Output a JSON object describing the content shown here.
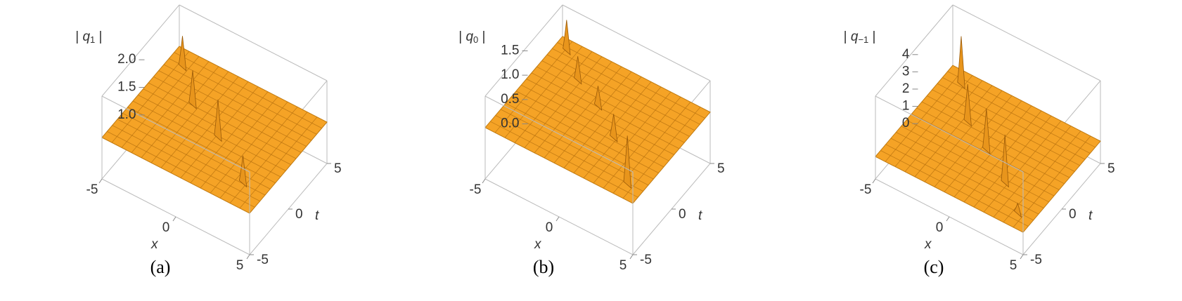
{
  "chart_data": [
    {
      "type": "surface",
      "caption": "(a)",
      "xlabel": "x",
      "ylabel": "t",
      "zlabel": {
        "open": "| ",
        "symbol": "q",
        "index": "1",
        "close": " |"
      },
      "xlim": [
        -5,
        5
      ],
      "xticks": [
        -5,
        0,
        5
      ],
      "ylim": [
        -5,
        5
      ],
      "yticks": [
        -5,
        0,
        5
      ],
      "zlim": [
        0.75,
        2.25
      ],
      "zticks": [
        {
          "value": 1,
          "label": "1.0"
        },
        1.5,
        {
          "value": 2,
          "label": "2.0"
        }
      ],
      "color": "#f5a326"
    },
    {
      "type": "surface",
      "caption": "(b)",
      "xlabel": "x",
      "ylabel": "t",
      "zlabel": {
        "open": "| ",
        "symbol": "q",
        "index": "0",
        "close": " |"
      },
      "xlim": [
        -5,
        5
      ],
      "xticks": [
        -5,
        0,
        5
      ],
      "ylim": [
        -5,
        5
      ],
      "yticks": [
        -5,
        0,
        5
      ],
      "zlim": [
        -0.1,
        1.6
      ],
      "zticks": [
        {
          "value": 0,
          "label": "0.0"
        },
        0.5,
        {
          "value": 1,
          "label": "1.0"
        },
        1.5
      ],
      "color": "#f5a326"
    },
    {
      "type": "surface",
      "caption": "(c)",
      "xlabel": "x",
      "ylabel": "t",
      "zlabel": {
        "open": "| ",
        "symbol": "q",
        "index": "−1",
        "close": " |"
      },
      "xlim": [
        -5,
        5
      ],
      "xticks": [
        -5,
        0,
        5
      ],
      "ylim": [
        -5,
        5
      ],
      "yticks": [
        -5,
        0,
        5
      ],
      "zlim": [
        -0.3,
        4.5
      ],
      "zticks": [
        0,
        1,
        2,
        3,
        4
      ],
      "color": "#f5a326"
    }
  ]
}
